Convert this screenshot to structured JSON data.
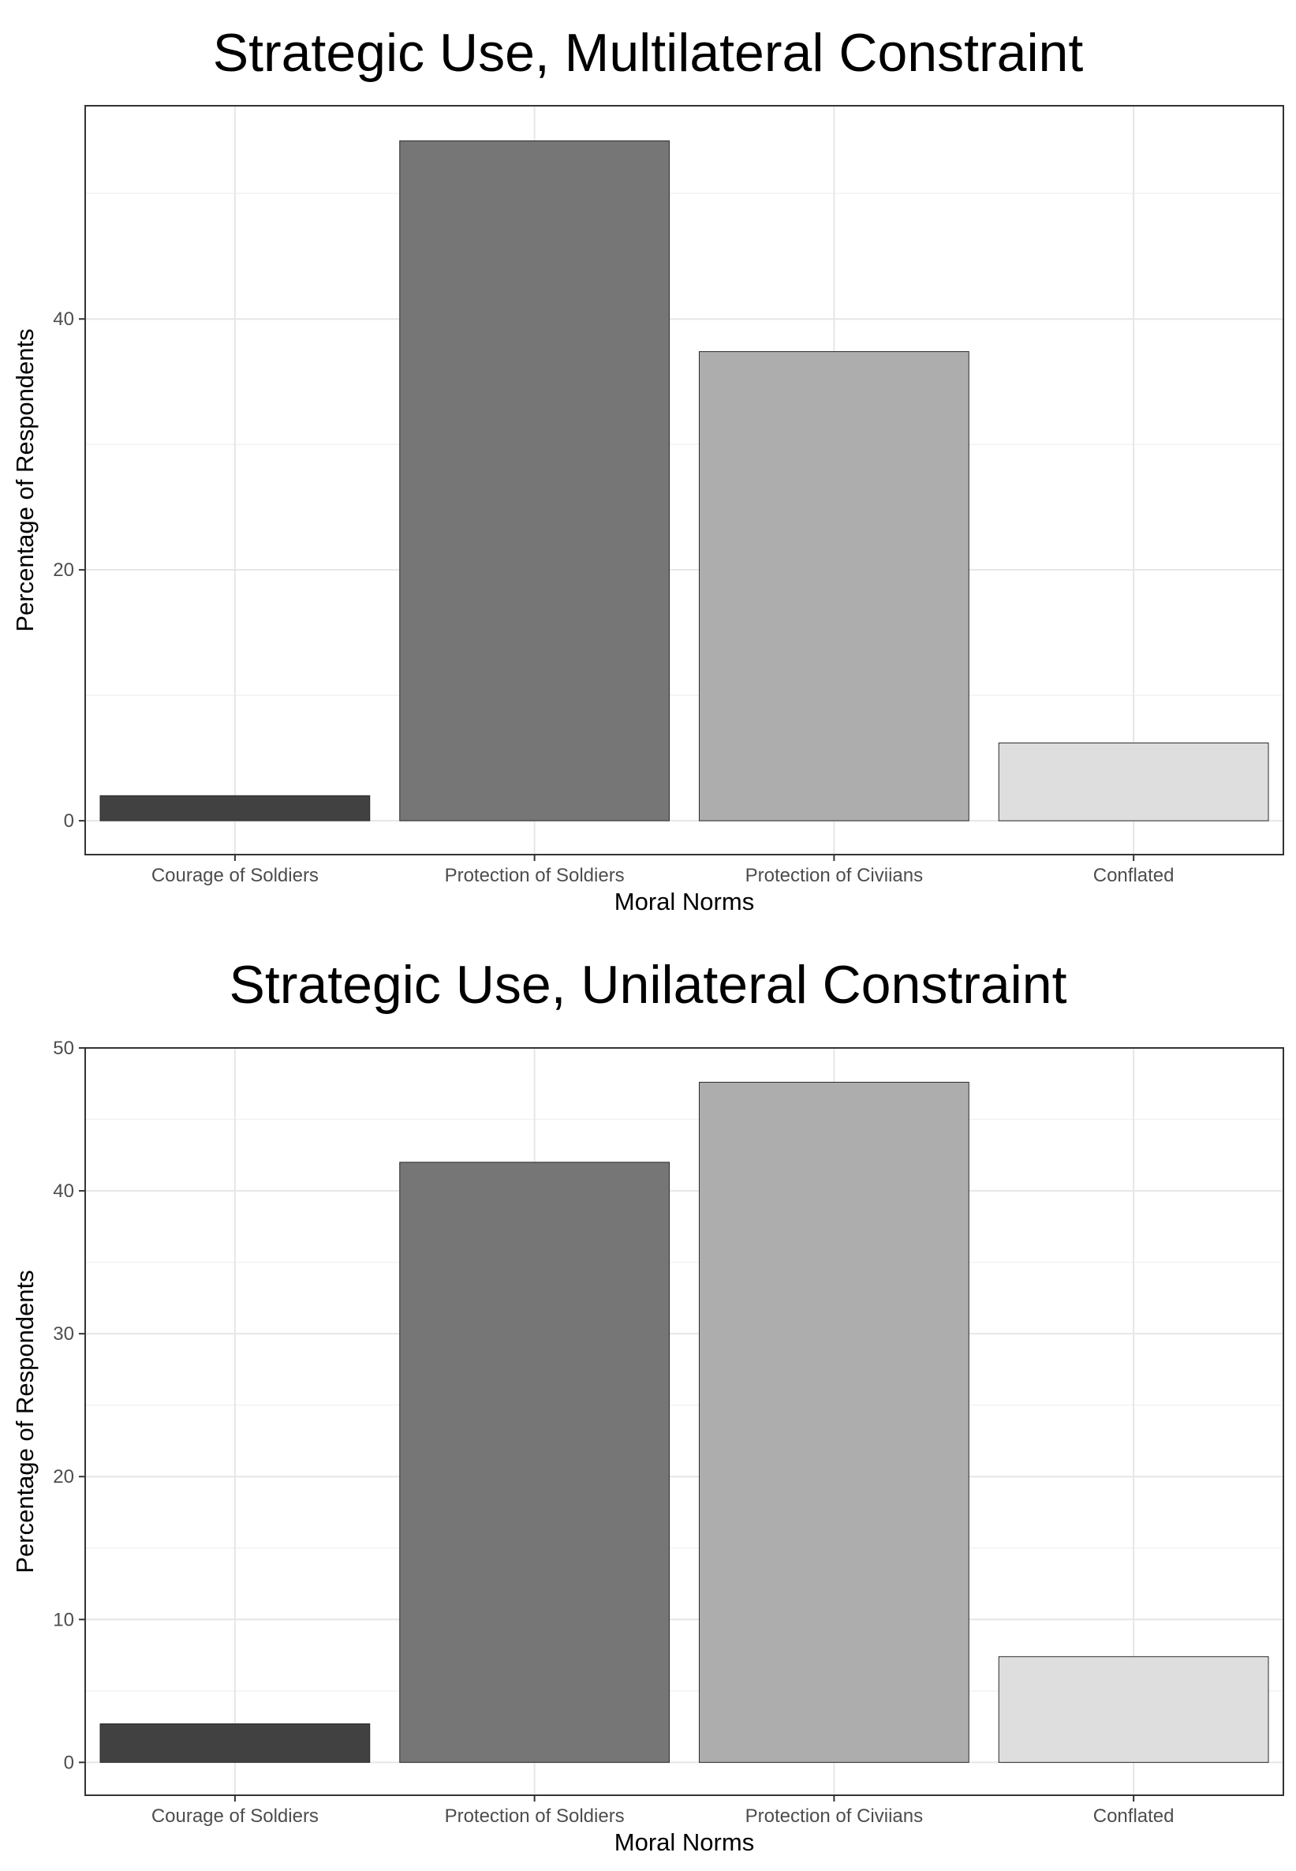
{
  "chart_data": [
    {
      "type": "bar",
      "title": "Strategic Use, Multilateral Constraint",
      "xlabel": "Moral Norms",
      "ylabel": "Percentage of Respondents",
      "categories": [
        "Courage of Soldiers",
        "Protection of Soldiers",
        "Protection of Civiians",
        "Conflated"
      ],
      "values": [
        2.0,
        54.2,
        37.4,
        6.2
      ],
      "ylim": [
        -2.7,
        57.0
      ],
      "yticks": [
        0,
        20,
        40
      ],
      "grid": true,
      "legend": "none",
      "colors": [
        "#414141",
        "#767676",
        "#adadad",
        "#dedede"
      ]
    },
    {
      "type": "bar",
      "title": "Strategic Use, Unilateral Constraint",
      "xlabel": "Moral Norms",
      "ylabel": "Percentage of Respondents",
      "categories": [
        "Courage of Soldiers",
        "Protection of Soldiers",
        "Protection of Civiians",
        "Conflated"
      ],
      "values": [
        2.7,
        42.0,
        47.6,
        7.4
      ],
      "ylim": [
        -2.3,
        50.0
      ],
      "yticks": [
        0,
        10,
        20,
        30,
        40,
        50
      ],
      "grid": true,
      "legend": "none",
      "colors": [
        "#414141",
        "#767676",
        "#adadad",
        "#dedede"
      ]
    }
  ]
}
